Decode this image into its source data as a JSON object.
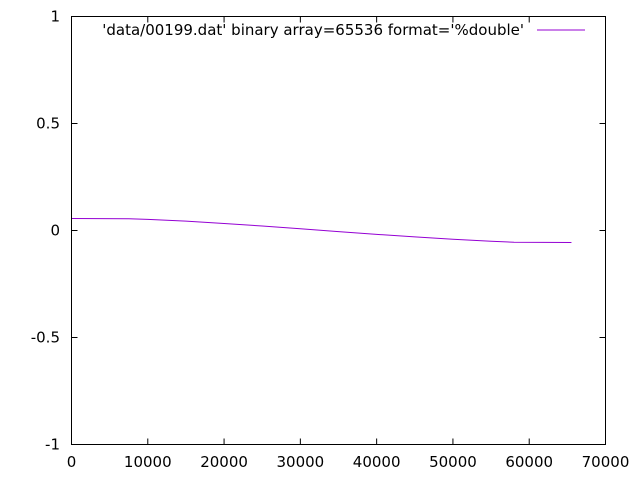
{
  "chart_data": {
    "type": "line",
    "title": "",
    "xlabel": "",
    "ylabel": "",
    "xlim": [
      0,
      70000
    ],
    "ylim": [
      -1,
      1
    ],
    "x_ticks": [
      0,
      10000,
      20000,
      30000,
      40000,
      50000,
      60000,
      70000
    ],
    "x_tick_labels": [
      "0",
      "10000",
      "20000",
      "30000",
      "40000",
      "50000",
      "60000",
      "70000"
    ],
    "y_ticks": [
      1,
      0.5,
      0,
      -0.5,
      -1
    ],
    "y_tick_labels": [
      "1",
      "0.5",
      "0",
      "-0.5",
      "-1"
    ],
    "grid": false,
    "legend_position": "top-right",
    "line_color": "#9400d3",
    "series": [
      {
        "name": "'data/00199.dat' binary array=65536 format='%double'",
        "x": [
          0,
          7500,
          10000,
          15000,
          20000,
          25000,
          30000,
          35000,
          40000,
          45000,
          50000,
          55000,
          58000,
          65536
        ],
        "y": [
          0.056,
          0.055,
          0.052,
          0.044,
          0.033,
          0.021,
          0.008,
          -0.005,
          -0.018,
          -0.03,
          -0.041,
          -0.05,
          -0.055,
          -0.056
        ]
      }
    ]
  }
}
